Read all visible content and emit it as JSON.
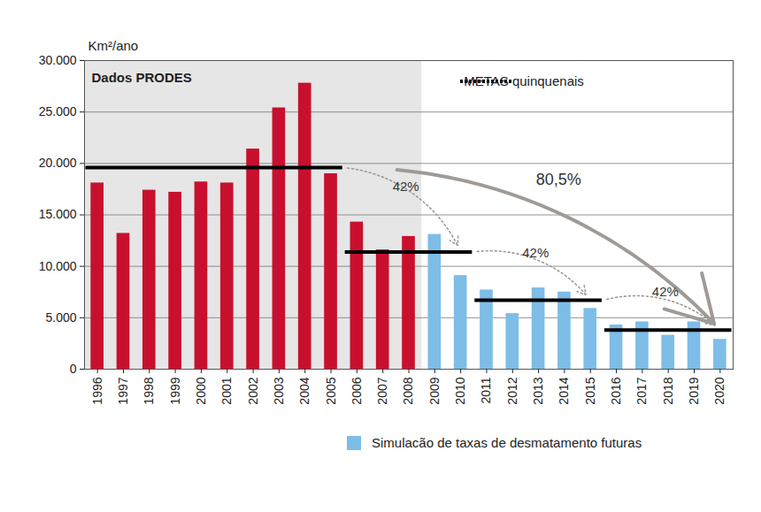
{
  "chart_data": {
    "type": "bar",
    "ylabel": "Km²/ano",
    "observed_label": "Dados PRODES",
    "categories": [
      "1996",
      "1997",
      "1998",
      "1999",
      "2000",
      "2001",
      "2002",
      "2003",
      "2004",
      "2005",
      "2006",
      "2007",
      "2008",
      "2009",
      "2010",
      "2011",
      "2012",
      "2013",
      "2014",
      "2015",
      "2016",
      "2017",
      "2018",
      "2019",
      "2020"
    ],
    "series": [
      {
        "color": "#c8102e",
        "values": [
          18100,
          13200,
          17400,
          17200,
          18200,
          18100,
          21400,
          25400,
          27800,
          19000,
          14300,
          11600,
          12900,
          null,
          null,
          null,
          null,
          null,
          null,
          null,
          null,
          null,
          null,
          null,
          null
        ]
      },
      {
        "name": "Simulacão de taxas de desmatamento futuras",
        "color": "#7dbde8",
        "values": [
          null,
          null,
          null,
          null,
          null,
          null,
          null,
          null,
          null,
          null,
          null,
          null,
          null,
          13100,
          9100,
          7700,
          5400,
          7900,
          7500,
          5900,
          4300,
          4600,
          3300,
          4600,
          2900
        ]
      }
    ],
    "reference_lines": [
      {
        "value": 19600,
        "from": "1996",
        "to": "2005",
        "color": "#000000",
        "line_style": "solid"
      }
    ],
    "targets": {
      "name": "METAS quinquenais",
      "color": "#000000",
      "line_style": "dotted",
      "segments": [
        {
          "value": 11400,
          "from": "2006",
          "to": "2010"
        },
        {
          "value": 6700,
          "from": "2011",
          "to": "2015"
        },
        {
          "value": 3800,
          "from": "2016",
          "to": "2020"
        }
      ]
    },
    "arrows": [
      {
        "label": "42%",
        "from": "2005",
        "to": "2010",
        "line_style": "dotted"
      },
      {
        "label": "42%",
        "from": "2010",
        "to": "2015",
        "line_style": "dotted"
      },
      {
        "label": "42%",
        "from": "2015",
        "to": "2020",
        "line_style": "dotted"
      },
      {
        "label": "80,5%",
        "from": "2005",
        "to": "2020",
        "line_style": "solid"
      }
    ],
    "ylim": [
      0,
      30000
    ],
    "yticks": [
      0,
      {
        "value": 5000,
        "label": "5.000"
      },
      {
        "value": 10000,
        "label": "10.000"
      },
      {
        "value": 15000,
        "label": "15.000"
      },
      {
        "value": 20000,
        "label": "20.000"
      },
      {
        "value": 25000,
        "label": "25.000"
      },
      {
        "value": 30000,
        "label": "30.000"
      }
    ],
    "grid": true,
    "legend": "bottom"
  }
}
